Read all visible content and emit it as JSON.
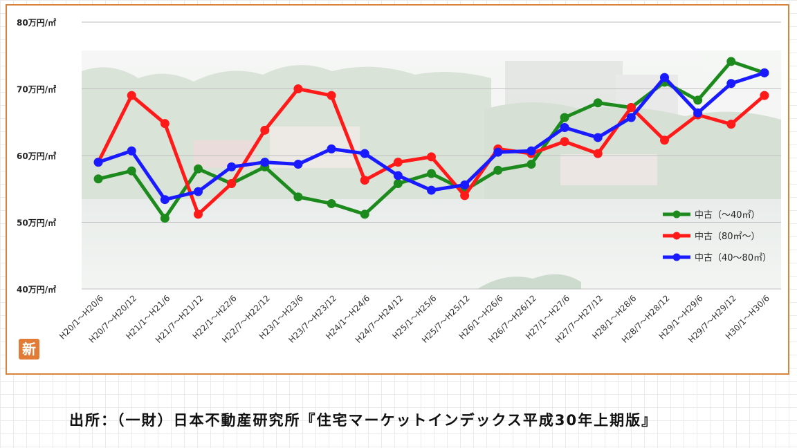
{
  "source_note": "出所：（一財）日本不動産研究所『住宅マーケットインデックス平成30年上期版』",
  "badge": "新",
  "colors": {
    "green": "#1d8a1d",
    "red": "#ff1a1a",
    "blue": "#1a1aff",
    "frame": "#d9823c"
  },
  "chart_data": {
    "type": "line",
    "title": "",
    "xlabel": "",
    "ylabel": "",
    "ylim": [
      40,
      80
    ],
    "y_ticks": [
      {
        "value": 80,
        "label": "80万円/㎡"
      },
      {
        "value": 70,
        "label": "70万円/㎡"
      },
      {
        "value": 60,
        "label": "60万円/㎡"
      },
      {
        "value": 50,
        "label": "50万円/㎡"
      },
      {
        "value": 40,
        "label": "40万円/㎡"
      }
    ],
    "grid": true,
    "legend_position": "bottom-right",
    "categories": [
      "H20/1～H20/6",
      "H20/7～H20/12",
      "H21/1～H21/6",
      "H21/7～H21/12",
      "H22/1～H22/6",
      "H22/7～H22/12",
      "H23/1～H23/6",
      "H23/7～H23/12",
      "H24/1～H24/6",
      "H24/7～H24/12",
      "H25/1～H25/6",
      "H25/7～H25/12",
      "H26/1～H26/6",
      "H26/7～H26/12",
      "H27/1～H27/6",
      "H27/7～H27/12",
      "H28/1～H28/6",
      "H28/7～H28/12",
      "H29/1～H29/6",
      "H29/7～H29/12",
      "H30/1～H30/6"
    ],
    "series": [
      {
        "name": "中古（～40㎡）",
        "color": "#1d8a1d",
        "values": [
          56.5,
          57.7,
          50.6,
          58.0,
          55.8,
          58.3,
          53.8,
          52.8,
          51.2,
          55.8,
          57.3,
          54.8,
          57.8,
          58.7,
          65.7,
          67.9,
          67.2,
          71.0,
          68.3,
          74.1,
          72.4
        ]
      },
      {
        "name": "中古（80㎡～）",
        "color": "#ff1a1a",
        "values": [
          59.0,
          69.0,
          64.8,
          51.2,
          55.8,
          63.8,
          70.0,
          69.0,
          56.3,
          59.0,
          59.8,
          54.0,
          61.0,
          60.3,
          62.1,
          60.3,
          67.2,
          62.3,
          66.1,
          64.7,
          69.0
        ]
      },
      {
        "name": "中古（40～80㎡）",
        "color": "#1a1aff",
        "values": [
          59.0,
          60.7,
          53.4,
          54.6,
          58.3,
          59.0,
          58.7,
          61.0,
          60.3,
          57.0,
          54.8,
          55.6,
          60.5,
          60.7,
          64.2,
          62.7,
          65.7,
          71.7,
          66.4,
          70.8,
          72.4
        ]
      }
    ]
  }
}
